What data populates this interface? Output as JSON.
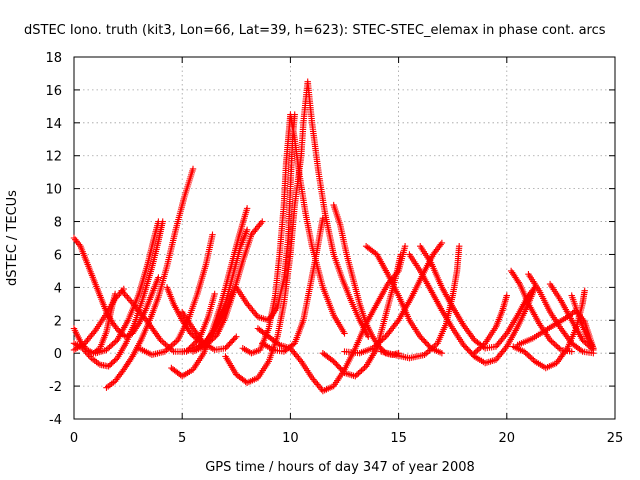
{
  "chart_data": {
    "type": "scatter",
    "title": "dSTEC Iono. truth (kit3, Lon=66, Lat=39, h=623): STEC-STEC_elemax in phase cont. arcs",
    "xlabel": "GPS time / hours of day 347 of year 2008",
    "ylabel": "dSTEC  / TECUs",
    "xlim": [
      0,
      25
    ],
    "ylim": [
      -4,
      18
    ],
    "xticks": [
      0,
      5,
      10,
      15,
      20,
      25
    ],
    "yticks": [
      -4,
      -2,
      0,
      2,
      4,
      6,
      8,
      10,
      12,
      14,
      16,
      18
    ],
    "grid": true,
    "marker": "+",
    "color": "#ff0000",
    "series": [
      {
        "points": [
          [
            0.0,
            7.0
          ],
          [
            0.3,
            6.5
          ],
          [
            0.6,
            5.5
          ],
          [
            0.9,
            4.5
          ],
          [
            1.2,
            3.5
          ],
          [
            1.5,
            2.5
          ],
          [
            1.8,
            1.8
          ],
          [
            2.1,
            1.3
          ],
          [
            2.4,
            1.0
          ],
          [
            2.7,
            1.2
          ],
          [
            3.0,
            1.8
          ],
          [
            3.3,
            2.6
          ],
          [
            3.6,
            3.6
          ],
          [
            3.9,
            4.6
          ]
        ]
      },
      {
        "points": [
          [
            0.0,
            0.6
          ],
          [
            0.4,
            0.3
          ],
          [
            0.8,
            -0.3
          ],
          [
            1.2,
            -0.7
          ],
          [
            1.6,
            -0.8
          ],
          [
            2.0,
            -0.3
          ],
          [
            2.4,
            0.6
          ],
          [
            2.8,
            1.8
          ],
          [
            3.2,
            3.4
          ],
          [
            3.6,
            5.2
          ],
          [
            3.9,
            6.8
          ],
          [
            4.1,
            8.0
          ]
        ]
      },
      {
        "points": [
          [
            0.0,
            1.5
          ],
          [
            0.3,
            0.7
          ],
          [
            0.6,
            0.2
          ],
          [
            0.9,
            0.0
          ],
          [
            1.2,
            0.3
          ],
          [
            1.5,
            1.3
          ],
          [
            1.7,
            2.5
          ],
          [
            1.9,
            3.6
          ]
        ]
      },
      {
        "points": [
          [
            1.5,
            -2.1
          ],
          [
            1.9,
            -1.7
          ],
          [
            2.3,
            -1.0
          ],
          [
            2.7,
            -0.2
          ],
          [
            3.1,
            0.8
          ],
          [
            3.5,
            2.0
          ],
          [
            3.9,
            3.4
          ],
          [
            4.3,
            5.3
          ],
          [
            4.7,
            7.5
          ],
          [
            5.1,
            9.5
          ],
          [
            5.5,
            11.2
          ]
        ]
      },
      {
        "points": [
          [
            0.0,
            0.2
          ],
          [
            0.5,
            0.6
          ],
          [
            1.0,
            1.4
          ],
          [
            1.5,
            2.4
          ],
          [
            1.9,
            3.3
          ],
          [
            2.3,
            3.9
          ]
        ]
      },
      {
        "points": [
          [
            1.0,
            0.0
          ],
          [
            1.5,
            0.2
          ],
          [
            2.0,
            0.8
          ],
          [
            2.5,
            2.0
          ],
          [
            3.0,
            3.6
          ],
          [
            3.4,
            5.4
          ],
          [
            3.7,
            7.0
          ],
          [
            3.9,
            8.0
          ]
        ]
      },
      {
        "points": [
          [
            2.2,
            3.8
          ],
          [
            2.8,
            2.9
          ],
          [
            3.4,
            1.9
          ],
          [
            4.0,
            0.8
          ],
          [
            4.6,
            0.1
          ],
          [
            5.2,
            0.1
          ],
          [
            5.8,
            0.9
          ],
          [
            6.2,
            2.2
          ],
          [
            6.5,
            3.6
          ]
        ]
      },
      {
        "points": [
          [
            3.0,
            0.3
          ],
          [
            3.6,
            -0.1
          ],
          [
            4.2,
            0.1
          ],
          [
            4.8,
            0.8
          ],
          [
            5.3,
            2.1
          ],
          [
            5.7,
            3.6
          ],
          [
            6.1,
            5.4
          ],
          [
            6.4,
            7.2
          ]
        ]
      },
      {
        "points": [
          [
            4.3,
            4.0
          ],
          [
            4.6,
            3.0
          ],
          [
            5.0,
            2.0
          ],
          [
            5.4,
            1.2
          ],
          [
            5.8,
            0.7
          ],
          [
            6.2,
            0.6
          ],
          [
            6.6,
            1.1
          ],
          [
            7.0,
            2.2
          ],
          [
            7.4,
            3.8
          ],
          [
            7.8,
            5.6
          ],
          [
            8.2,
            7.2
          ],
          [
            8.7,
            8.0
          ]
        ]
      },
      {
        "points": [
          [
            4.5,
            -0.9
          ],
          [
            5.0,
            -1.4
          ],
          [
            5.5,
            -1.0
          ],
          [
            6.0,
            0.0
          ],
          [
            6.4,
            1.4
          ],
          [
            6.8,
            3.0
          ],
          [
            7.2,
            5.0
          ],
          [
            7.6,
            7.0
          ],
          [
            8.0,
            8.8
          ]
        ]
      },
      {
        "points": [
          [
            5.0,
            0.1
          ],
          [
            5.5,
            0.2
          ],
          [
            6.0,
            0.6
          ],
          [
            6.5,
            1.4
          ],
          [
            7.0,
            2.6
          ],
          [
            7.4,
            3.8
          ]
        ]
      },
      {
        "points": [
          [
            5.5,
            0.1
          ],
          [
            6.0,
            0.4
          ],
          [
            6.5,
            1.5
          ],
          [
            7.0,
            3.0
          ],
          [
            7.4,
            5.0
          ],
          [
            7.7,
            6.5
          ],
          [
            8.0,
            7.5
          ]
        ]
      },
      {
        "points": [
          [
            5.0,
            2.5
          ],
          [
            5.5,
            1.5
          ],
          [
            6.0,
            0.6
          ],
          [
            6.5,
            0.2
          ],
          [
            7.0,
            0.3
          ],
          [
            7.5,
            1.0
          ]
        ]
      },
      {
        "points": [
          [
            7.0,
            -0.2
          ],
          [
            7.5,
            -1.3
          ],
          [
            8.0,
            -1.8
          ],
          [
            8.5,
            -1.5
          ],
          [
            9.0,
            -0.5
          ],
          [
            9.4,
            1.0
          ],
          [
            9.7,
            3.0
          ],
          [
            10.0,
            6.0
          ],
          [
            10.2,
            9.0
          ],
          [
            10.5,
            12.0
          ],
          [
            10.6,
            14.0
          ],
          [
            10.8,
            16.5
          ],
          [
            11.0,
            14.0
          ],
          [
            11.3,
            11.0
          ],
          [
            11.6,
            8.5
          ],
          [
            12.0,
            6.0
          ],
          [
            12.4,
            4.5
          ],
          [
            12.8,
            3.2
          ],
          [
            13.2,
            2.0
          ],
          [
            13.6,
            1.0
          ]
        ]
      },
      {
        "points": [
          [
            7.8,
            0.3
          ],
          [
            8.2,
            0.0
          ],
          [
            8.6,
            0.2
          ],
          [
            9.0,
            1.5
          ],
          [
            9.3,
            3.5
          ],
          [
            9.5,
            6.0
          ],
          [
            9.7,
            9.0
          ],
          [
            9.8,
            11.5
          ],
          [
            9.9,
            13.0
          ],
          [
            10.0,
            14.5
          ],
          [
            10.2,
            13.0
          ],
          [
            10.4,
            11.0
          ],
          [
            10.7,
            8.5
          ],
          [
            11.0,
            6.5
          ],
          [
            11.5,
            4.0
          ],
          [
            12.0,
            2.3
          ],
          [
            12.5,
            1.2
          ]
        ]
      },
      {
        "points": [
          [
            7.5,
            4.0
          ],
          [
            8.0,
            3.0
          ],
          [
            8.5,
            2.2
          ],
          [
            9.0,
            2.0
          ],
          [
            9.4,
            2.8
          ],
          [
            9.7,
            4.5
          ],
          [
            9.9,
            7.0
          ],
          [
            10.0,
            10.0
          ],
          [
            10.1,
            13.0
          ],
          [
            10.2,
            14.5
          ]
        ]
      },
      {
        "points": [
          [
            8.5,
            1.5
          ],
          [
            9.0,
            1.0
          ],
          [
            9.5,
            0.5
          ],
          [
            10.0,
            0.3
          ],
          [
            10.5,
            -0.5
          ],
          [
            11.0,
            -1.5
          ],
          [
            11.5,
            -2.3
          ],
          [
            12.0,
            -2.0
          ],
          [
            12.5,
            -1.0
          ],
          [
            13.0,
            0.3
          ],
          [
            13.5,
            1.8
          ],
          [
            14.0,
            3.0
          ],
          [
            14.5,
            4.2
          ],
          [
            15.0,
            5.0
          ],
          [
            15.3,
            6.5
          ]
        ]
      },
      {
        "points": [
          [
            8.7,
            0.6
          ],
          [
            9.2,
            0.2
          ],
          [
            9.7,
            0.1
          ],
          [
            10.2,
            0.6
          ],
          [
            10.6,
            2.0
          ],
          [
            10.9,
            4.0
          ],
          [
            11.2,
            6.0
          ],
          [
            11.4,
            7.5
          ],
          [
            11.5,
            8.2
          ]
        ]
      },
      {
        "points": [
          [
            12.0,
            9.0
          ],
          [
            12.3,
            7.8
          ],
          [
            12.6,
            6.0
          ],
          [
            12.9,
            4.5
          ],
          [
            13.2,
            3.0
          ],
          [
            13.5,
            1.8
          ],
          [
            13.8,
            1.0
          ],
          [
            14.1,
            0.4
          ],
          [
            14.4,
            0.0
          ],
          [
            14.7,
            -0.1
          ],
          [
            15.0,
            0.0
          ]
        ]
      },
      {
        "points": [
          [
            11.5,
            0.0
          ],
          [
            12.0,
            -0.5
          ],
          [
            12.5,
            -1.2
          ],
          [
            13.0,
            -1.4
          ],
          [
            13.5,
            -0.8
          ],
          [
            14.0,
            0.3
          ],
          [
            14.3,
            1.8
          ],
          [
            14.6,
            3.3
          ],
          [
            14.9,
            4.8
          ],
          [
            15.1,
            6.0
          ]
        ]
      },
      {
        "points": [
          [
            12.5,
            0.1
          ],
          [
            13.2,
            0.0
          ],
          [
            13.8,
            0.3
          ],
          [
            14.4,
            1.0
          ],
          [
            15.0,
            2.0
          ],
          [
            15.6,
            3.4
          ],
          [
            16.2,
            5.0
          ],
          [
            16.6,
            6.0
          ],
          [
            17.0,
            6.7
          ]
        ]
      },
      {
        "points": [
          [
            13.5,
            6.5
          ],
          [
            14.0,
            6.0
          ],
          [
            14.5,
            4.8
          ],
          [
            15.0,
            3.5
          ],
          [
            15.5,
            2.0
          ],
          [
            16.0,
            1.0
          ],
          [
            16.5,
            0.3
          ],
          [
            17.0,
            0.0
          ]
        ]
      },
      {
        "points": [
          [
            14.2,
            0.1
          ],
          [
            14.8,
            -0.1
          ],
          [
            15.5,
            -0.3
          ],
          [
            16.2,
            -0.1
          ],
          [
            16.8,
            0.6
          ],
          [
            17.2,
            1.8
          ],
          [
            17.5,
            3.5
          ],
          [
            17.7,
            5.0
          ],
          [
            17.8,
            6.5
          ]
        ]
      },
      {
        "points": [
          [
            15.5,
            6.0
          ],
          [
            16.0,
            5.0
          ],
          [
            16.5,
            3.8
          ],
          [
            17.0,
            2.6
          ],
          [
            17.5,
            1.5
          ],
          [
            18.0,
            0.5
          ],
          [
            18.5,
            -0.2
          ],
          [
            19.0,
            -0.6
          ],
          [
            19.5,
            -0.4
          ],
          [
            20.0,
            0.4
          ],
          [
            20.5,
            1.6
          ],
          [
            21.0,
            3.0
          ],
          [
            21.3,
            4.0
          ]
        ]
      },
      {
        "points": [
          [
            16.0,
            6.5
          ],
          [
            16.5,
            5.5
          ],
          [
            17.0,
            4.0
          ],
          [
            17.5,
            2.8
          ],
          [
            18.0,
            1.7
          ],
          [
            18.5,
            0.8
          ],
          [
            19.0,
            0.3
          ],
          [
            19.5,
            0.4
          ],
          [
            20.0,
            1.2
          ],
          [
            20.5,
            2.3
          ],
          [
            21.0,
            3.5
          ],
          [
            21.3,
            4.0
          ]
        ]
      },
      {
        "points": [
          [
            18.5,
            0.0
          ],
          [
            19.0,
            0.6
          ],
          [
            19.5,
            1.6
          ],
          [
            19.8,
            2.6
          ],
          [
            20.0,
            3.5
          ]
        ]
      },
      {
        "points": [
          [
            20.2,
            5.0
          ],
          [
            20.6,
            4.2
          ],
          [
            21.0,
            3.0
          ],
          [
            21.5,
            1.8
          ],
          [
            22.0,
            0.8
          ],
          [
            22.5,
            0.2
          ],
          [
            23.0,
            0.1
          ]
        ]
      },
      {
        "points": [
          [
            21.0,
            4.8
          ],
          [
            21.5,
            3.8
          ],
          [
            22.0,
            2.5
          ],
          [
            22.5,
            1.5
          ],
          [
            23.0,
            0.6
          ],
          [
            23.5,
            0.1
          ],
          [
            24.0,
            0.0
          ]
        ]
      },
      {
        "points": [
          [
            22.0,
            4.2
          ],
          [
            22.5,
            3.2
          ],
          [
            23.0,
            2.0
          ],
          [
            23.5,
            0.8
          ],
          [
            24.0,
            0.2
          ]
        ]
      },
      {
        "points": [
          [
            20.3,
            0.4
          ],
          [
            20.8,
            0.1
          ],
          [
            21.3,
            -0.5
          ],
          [
            21.8,
            -0.9
          ],
          [
            22.3,
            -0.6
          ],
          [
            22.8,
            0.3
          ],
          [
            23.2,
            1.5
          ],
          [
            23.5,
            3.0
          ],
          [
            23.6,
            3.8
          ]
        ]
      },
      {
        "points": [
          [
            20.5,
            0.5
          ],
          [
            21.2,
            0.9
          ],
          [
            21.8,
            1.4
          ],
          [
            22.3,
            1.8
          ],
          [
            22.8,
            2.2
          ],
          [
            23.2,
            2.6
          ],
          [
            23.6,
            1.9
          ],
          [
            24.0,
            0.3
          ]
        ]
      },
      {
        "points": [
          [
            23.0,
            3.5
          ],
          [
            23.4,
            2.0
          ],
          [
            23.7,
            1.0
          ],
          [
            24.0,
            0.3
          ]
        ]
      }
    ]
  }
}
